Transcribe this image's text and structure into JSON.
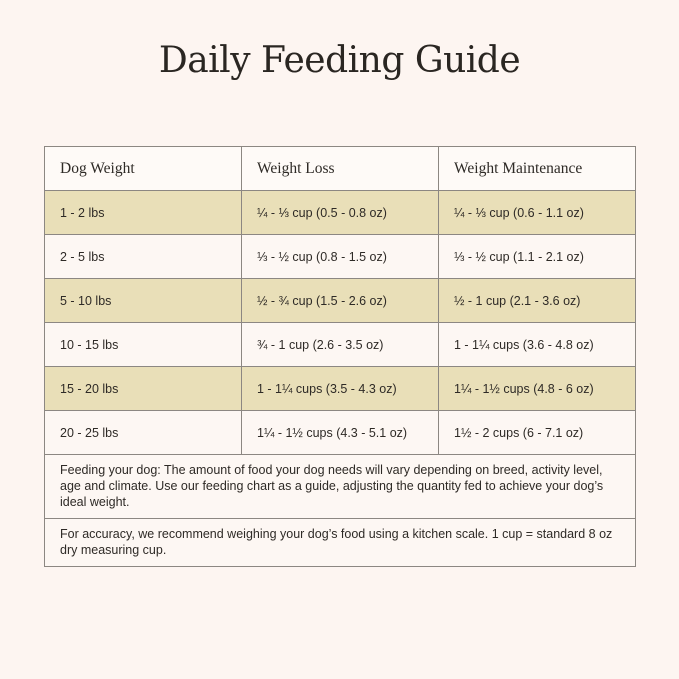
{
  "title": "Daily Feeding Guide",
  "headers": [
    "Dog Weight",
    "Weight Loss",
    "Weight Maintenance"
  ],
  "rows": [
    [
      "1 - 2 lbs",
      "¼ - ⅓ cup (0.5 - 0.8 oz)",
      "¼ - ⅓ cup (0.6 - 1.1 oz)"
    ],
    [
      "2 - 5 lbs",
      "⅓ - ½ cup (0.8 - 1.5 oz)",
      "⅓ - ½ cup (1.1 - 2.1 oz)"
    ],
    [
      "5 - 10 lbs",
      "½ - ¾ cup (1.5 - 2.6 oz)",
      "½ - 1 cup (2.1 - 3.6 oz)"
    ],
    [
      "10 - 15 lbs",
      "¾ - 1 cup (2.6 - 3.5 oz)",
      "1 - 1¼ cups (3.6 - 4.8 oz)"
    ],
    [
      "15 - 20 lbs",
      "1 - 1¼ cups (3.5 - 4.3 oz)",
      "1¼ - 1½ cups (4.8 - 6 oz)"
    ],
    [
      "20 - 25 lbs",
      "1¼ - 1½ cups (4.3 - 5.1 oz)",
      "1½ - 2 cups (6 - 7.1 oz)"
    ]
  ],
  "notes": [
    "Feeding your dog: The amount of food your dog needs will vary depending on breed, activity level, age and climate. Use our feeding chart as a guide, adjusting the quantity fed to achieve your dog’s ideal weight.",
    "For accuracy, we recommend weighing your dog’s food using a kitchen scale. 1 cup = standard 8 oz dry measuring cup."
  ],
  "colors": {
    "background": "#fdf5f1",
    "highlight_row": "#e9dfb8",
    "border": "#8c8782"
  }
}
